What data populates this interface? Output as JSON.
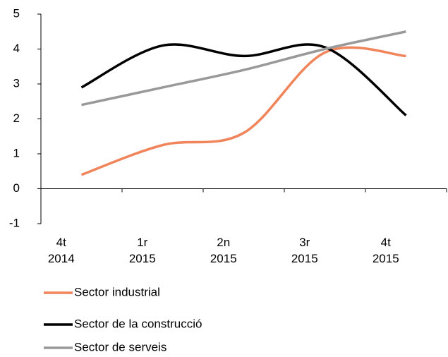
{
  "chart_data": {
    "type": "line",
    "categories": [
      "4t 2014",
      "1r 2015",
      "2n 2015",
      "3r 2015",
      "4t 2015"
    ],
    "series": [
      {
        "name": "Sector industrial",
        "color": "#f0845a",
        "values": [
          0.4,
          1.25,
          1.6,
          3.9,
          3.8
        ]
      },
      {
        "name": "Sector de la construcció",
        "color": "#000000",
        "values": [
          2.9,
          4.1,
          3.8,
          4.05,
          2.1
        ]
      },
      {
        "name": "Sector de serveis",
        "color": "#999999",
        "values": [
          2.4,
          2.9,
          3.4,
          4.0,
          4.5
        ]
      }
    ],
    "ylim": [
      -1,
      5
    ],
    "yticks": [
      -1,
      0,
      1,
      2,
      3,
      4,
      5
    ],
    "smooth": true,
    "grid": false,
    "legend": "bottom"
  }
}
